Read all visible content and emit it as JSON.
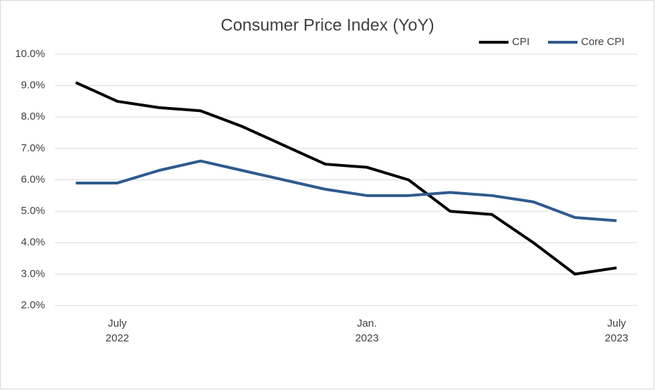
{
  "chart_data": {
    "type": "line",
    "title": "Consumer Price Index (YoY)",
    "categories": [
      null,
      [
        "July",
        "2022"
      ],
      null,
      null,
      null,
      null,
      null,
      [
        "Jan.",
        "2023"
      ],
      null,
      null,
      null,
      null,
      null,
      [
        "July",
        "2023"
      ]
    ],
    "series": [
      {
        "name": "CPI",
        "color": "#000000",
        "values": [
          9.1,
          8.5,
          8.3,
          8.2,
          7.7,
          7.1,
          6.5,
          6.4,
          6.0,
          5.0,
          4.9,
          4.0,
          3.0,
          3.2
        ]
      },
      {
        "name": "Core CPI",
        "color": "#2f5a8e",
        "values": [
          5.9,
          5.9,
          6.3,
          6.6,
          6.3,
          6.0,
          5.7,
          5.5,
          5.5,
          5.6,
          5.5,
          5.3,
          4.8,
          4.7
        ]
      }
    ],
    "ylim": [
      2,
      10
    ],
    "yticks": [
      {
        "value": 2,
        "label": "2.0%"
      },
      {
        "value": 3,
        "label": "3.0%"
      },
      {
        "value": 4,
        "label": "4.0%"
      },
      {
        "value": 5,
        "label": "5.0%"
      },
      {
        "value": 6,
        "label": "6.0%"
      },
      {
        "value": 7,
        "label": "7.0%"
      },
      {
        "value": 8,
        "label": "8.0%"
      },
      {
        "value": 9,
        "label": "9.0%"
      },
      {
        "value": 10,
        "label": "10.0%"
      }
    ],
    "grid": true,
    "legend": "top-right"
  }
}
